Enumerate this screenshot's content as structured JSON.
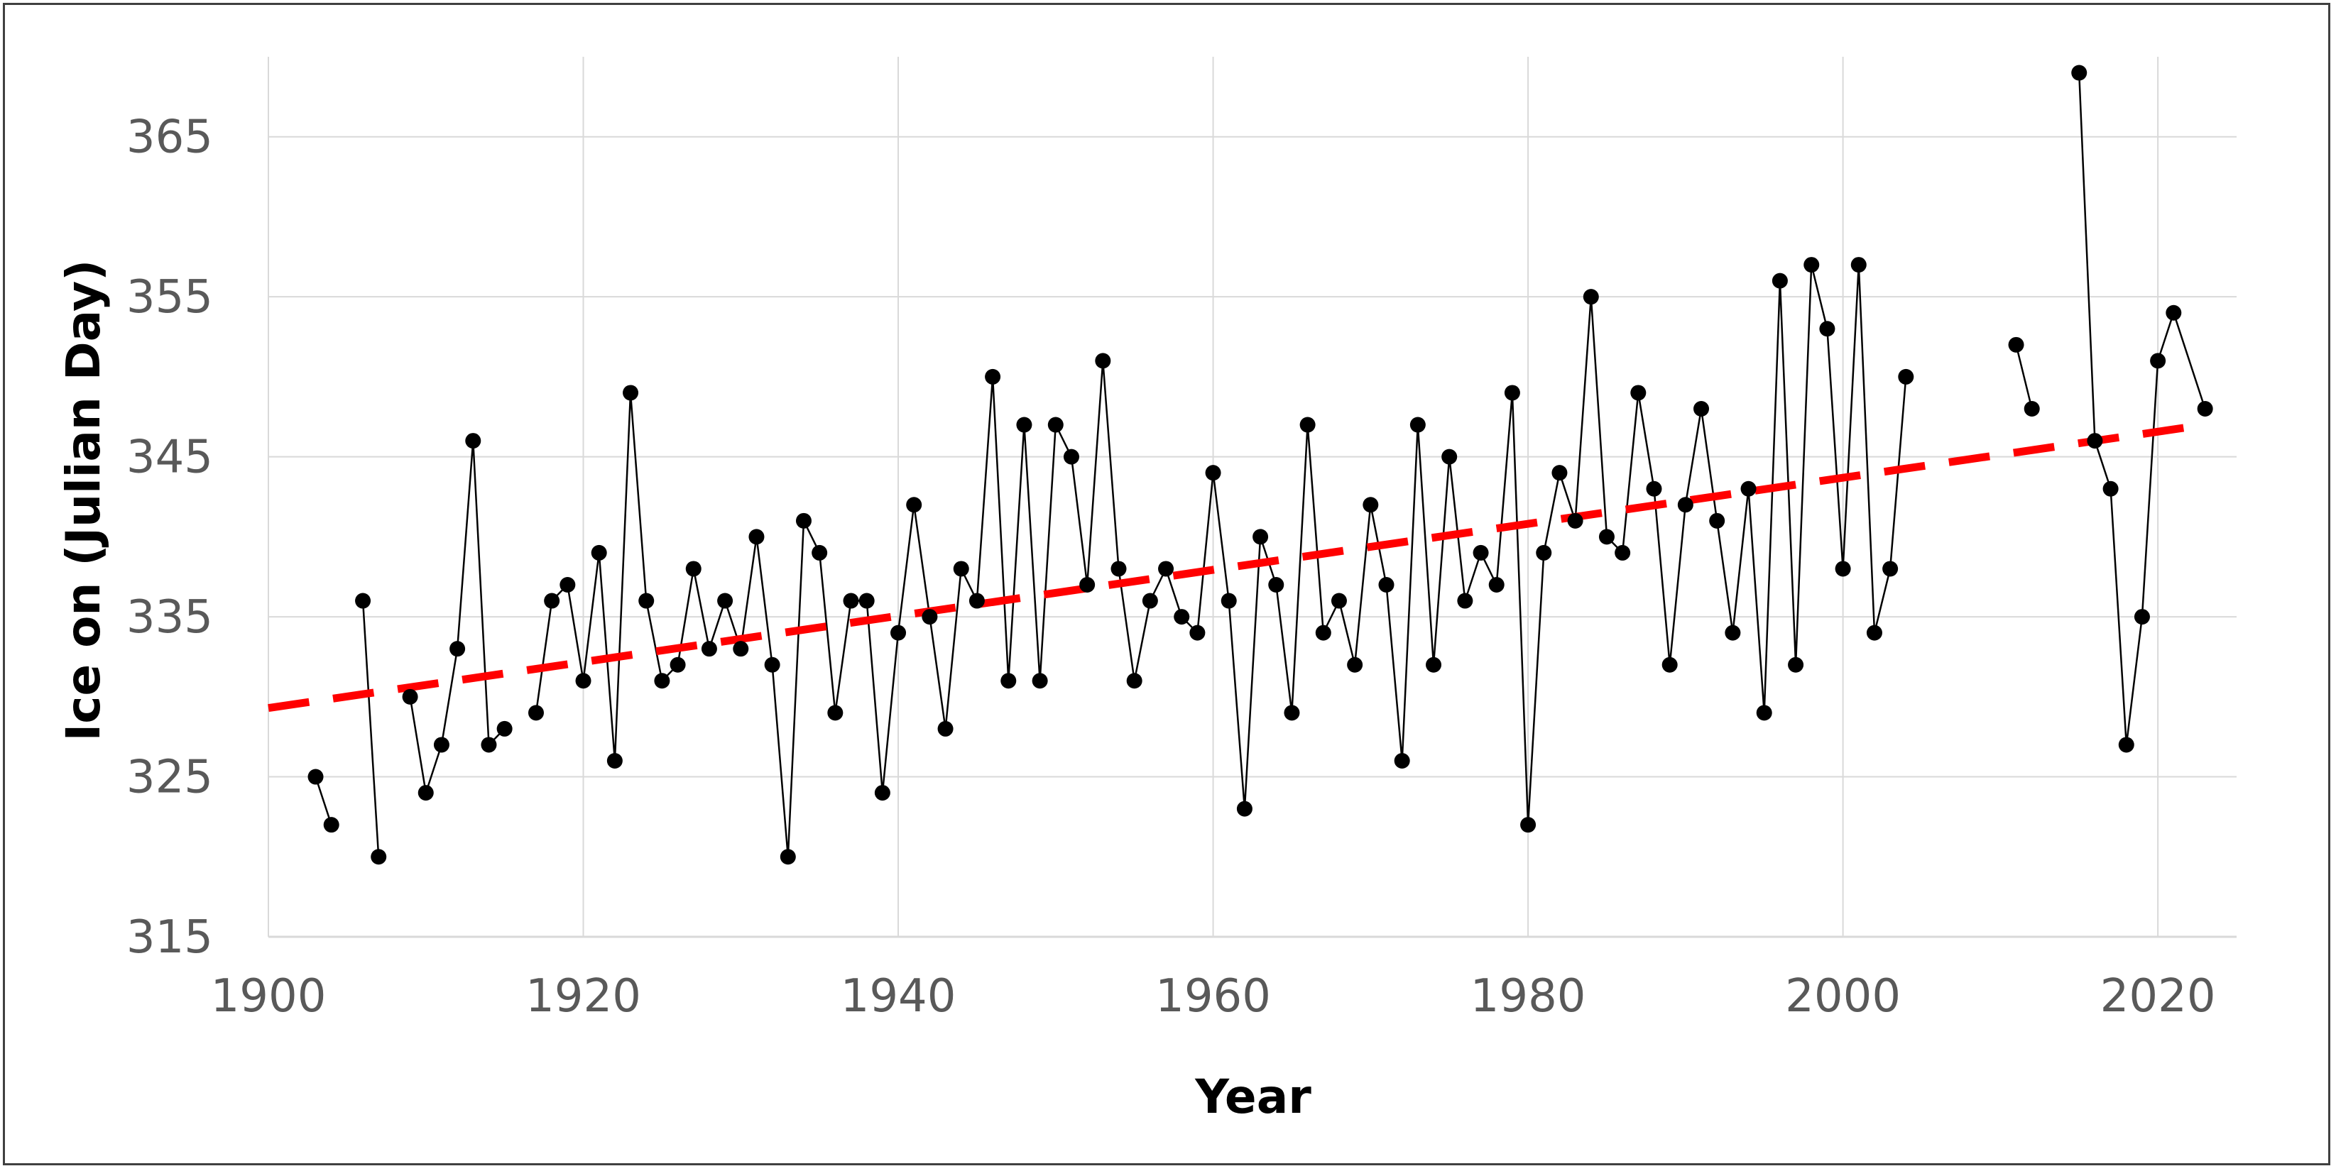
{
  "chart_data": {
    "type": "line",
    "title": "",
    "xlabel": "Year",
    "ylabel": "Ice on (Julian Day)",
    "xlim": [
      1900,
      2025
    ],
    "ylim": [
      315,
      370
    ],
    "x_ticks": [
      1900,
      1920,
      1940,
      1960,
      1980,
      2000,
      2020
    ],
    "y_ticks": [
      315,
      325,
      335,
      345,
      355,
      365
    ],
    "grid": true,
    "legend": "none",
    "colors": {
      "series": "#000000",
      "trend": "#ff0000",
      "grid": "#d9d9d9",
      "tick_text": "#595959"
    },
    "series": [
      {
        "style": "line-with-markers",
        "segments": [
          [
            [
              1903,
              325
            ],
            [
              1904,
              322
            ]
          ],
          [
            [
              1906,
              336
            ],
            [
              1907,
              320
            ]
          ],
          [
            [
              1909,
              330
            ],
            [
              1910,
              324
            ],
            [
              1911,
              327
            ],
            [
              1912,
              333
            ],
            [
              1913,
              346
            ],
            [
              1914,
              327
            ],
            [
              1915,
              328
            ]
          ],
          [
            [
              1917,
              329
            ],
            [
              1918,
              336
            ],
            [
              1919,
              337
            ],
            [
              1920,
              331
            ],
            [
              1921,
              339
            ],
            [
              1922,
              326
            ],
            [
              1923,
              349
            ],
            [
              1924,
              336
            ],
            [
              1925,
              331
            ],
            [
              1926,
              332
            ],
            [
              1927,
              338
            ],
            [
              1928,
              333
            ],
            [
              1929,
              336
            ],
            [
              1930,
              333
            ],
            [
              1931,
              340
            ],
            [
              1932,
              332
            ],
            [
              1933,
              320
            ],
            [
              1934,
              341
            ],
            [
              1935,
              339
            ],
            [
              1936,
              329
            ],
            [
              1937,
              336
            ],
            [
              1938,
              336
            ],
            [
              1939,
              324
            ],
            [
              1940,
              334
            ],
            [
              1941,
              342
            ],
            [
              1942,
              335
            ],
            [
              1943,
              328
            ],
            [
              1944,
              338
            ],
            [
              1945,
              336
            ],
            [
              1946,
              350
            ],
            [
              1947,
              331
            ],
            [
              1948,
              347
            ],
            [
              1949,
              331
            ],
            [
              1950,
              347
            ],
            [
              1951,
              345
            ],
            [
              1952,
              337
            ],
            [
              1953,
              351
            ],
            [
              1954,
              338
            ],
            [
              1955,
              331
            ],
            [
              1956,
              336
            ],
            [
              1957,
              338
            ],
            [
              1958,
              335
            ],
            [
              1959,
              334
            ],
            [
              1960,
              344
            ],
            [
              1961,
              336
            ],
            [
              1962,
              323
            ],
            [
              1963,
              340
            ],
            [
              1964,
              337
            ],
            [
              1965,
              329
            ],
            [
              1966,
              347
            ],
            [
              1967,
              334
            ],
            [
              1968,
              336
            ],
            [
              1969,
              332
            ],
            [
              1970,
              342
            ],
            [
              1971,
              337
            ],
            [
              1972,
              326
            ],
            [
              1973,
              347
            ],
            [
              1974,
              332
            ],
            [
              1975,
              345
            ],
            [
              1976,
              336
            ],
            [
              1977,
              339
            ],
            [
              1978,
              337
            ],
            [
              1979,
              349
            ],
            [
              1980,
              322
            ],
            [
              1981,
              339
            ],
            [
              1982,
              344
            ],
            [
              1983,
              341
            ],
            [
              1984,
              355
            ],
            [
              1985,
              340
            ],
            [
              1986,
              339
            ],
            [
              1987,
              349
            ],
            [
              1988,
              343
            ],
            [
              1989,
              332
            ],
            [
              1990,
              342
            ],
            [
              1991,
              348
            ],
            [
              1992,
              341
            ],
            [
              1993,
              334
            ],
            [
              1994,
              343
            ],
            [
              1995,
              329
            ],
            [
              1996,
              356
            ],
            [
              1997,
              332
            ],
            [
              1998,
              357
            ],
            [
              1999,
              353
            ],
            [
              2000,
              338
            ],
            [
              2001,
              357
            ],
            [
              2002,
              334
            ],
            [
              2003,
              338
            ],
            [
              2004,
              350
            ]
          ],
          [
            [
              2011,
              352
            ],
            [
              2012,
              348
            ]
          ],
          [
            [
              2015,
              369
            ],
            [
              2016,
              346
            ],
            [
              2017,
              343
            ],
            [
              2018,
              327
            ],
            [
              2019,
              335
            ],
            [
              2020,
              351
            ],
            [
              2021,
              354
            ],
            [
              2023,
              348
            ]
          ]
        ]
      },
      {
        "style": "dashed-trend",
        "points": [
          [
            1900,
            329.3
          ],
          [
            2023,
            347.0
          ]
        ]
      }
    ]
  }
}
